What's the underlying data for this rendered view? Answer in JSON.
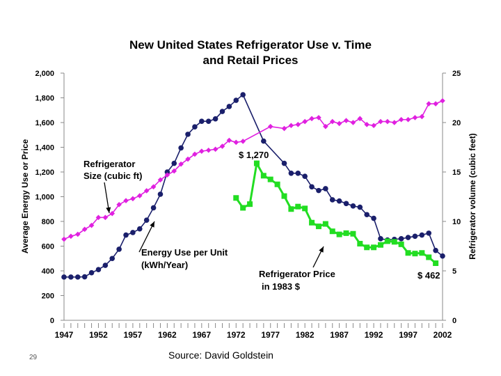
{
  "page": {
    "page_number": "29",
    "source": "Source: David Goldstein"
  },
  "chart_data": {
    "type": "line",
    "title": [
      "New United States Refrigerator Use v. Time",
      "and Retail Prices"
    ],
    "ylabel_left": "Average Energy Use or Price",
    "ylabel_right": "Refrigerator volume (cubic feet)",
    "ylim_left": [
      0,
      2000
    ],
    "ylim_right": [
      0,
      25
    ],
    "xlim": [
      1947,
      2002
    ],
    "left_ticks": [
      "0",
      "200",
      "400",
      "600",
      "800",
      "1,000",
      "1,200",
      "1,400",
      "1,600",
      "1,800",
      "2,000"
    ],
    "left_tick_values": [
      0,
      200,
      400,
      600,
      800,
      1000,
      1200,
      1400,
      1600,
      1800,
      2000
    ],
    "right_ticks": [
      "0",
      "5",
      "10",
      "15",
      "20",
      "25"
    ],
    "right_tick_values": [
      0,
      5,
      10,
      15,
      20,
      25
    ],
    "x_ticks": [
      "1947",
      "1952",
      "1957",
      "1962",
      "1967",
      "1972",
      "1977",
      "1982",
      "1987",
      "1992",
      "1997",
      "2002"
    ],
    "x_tick_values": [
      1947,
      1952,
      1957,
      1962,
      1967,
      1972,
      1977,
      1982,
      1987,
      1992,
      1997,
      2002
    ],
    "series": [
      {
        "name": "Energy Use per Unit (kWh/Year)",
        "color": "#1a1f6b",
        "marker": "circle",
        "axis": "left",
        "points": [
          [
            1947,
            350
          ],
          [
            1948,
            350
          ],
          [
            1949,
            350
          ],
          [
            1950,
            352
          ],
          [
            1951,
            385
          ],
          [
            1952,
            410
          ],
          [
            1953,
            445
          ],
          [
            1954,
            500
          ],
          [
            1955,
            575
          ],
          [
            1956,
            690
          ],
          [
            1957,
            710
          ],
          [
            1958,
            740
          ],
          [
            1959,
            810
          ],
          [
            1960,
            910
          ],
          [
            1961,
            1020
          ],
          [
            1962,
            1200
          ],
          [
            1963,
            1270
          ],
          [
            1964,
            1395
          ],
          [
            1965,
            1505
          ],
          [
            1966,
            1565
          ],
          [
            1967,
            1610
          ],
          [
            1968,
            1610
          ],
          [
            1969,
            1630
          ],
          [
            1970,
            1690
          ],
          [
            1971,
            1730
          ],
          [
            1972,
            1780
          ],
          [
            1973,
            1825
          ],
          [
            1976,
            1450
          ],
          [
            1979,
            1270
          ],
          [
            1980,
            1190
          ],
          [
            1981,
            1190
          ],
          [
            1982,
            1165
          ],
          [
            1983,
            1080
          ],
          [
            1984,
            1050
          ],
          [
            1985,
            1065
          ],
          [
            1986,
            975
          ],
          [
            1987,
            965
          ],
          [
            1988,
            945
          ],
          [
            1989,
            925
          ],
          [
            1990,
            915
          ],
          [
            1991,
            855
          ],
          [
            1992,
            825
          ],
          [
            1993,
            660
          ],
          [
            1994,
            650
          ],
          [
            1995,
            655
          ],
          [
            1996,
            660
          ],
          [
            1997,
            670
          ],
          [
            1998,
            680
          ],
          [
            1999,
            690
          ],
          [
            2000,
            705
          ],
          [
            2001,
            565
          ],
          [
            2002,
            520
          ]
        ]
      },
      {
        "name": "Refrigerator Size (cubic ft)",
        "color": "#e020e0",
        "marker": "diamond",
        "axis": "right",
        "points": [
          [
            1947,
            8.2
          ],
          [
            1948,
            8.5
          ],
          [
            1949,
            8.7
          ],
          [
            1950,
            9.2
          ],
          [
            1951,
            9.6
          ],
          [
            1952,
            10.4
          ],
          [
            1953,
            10.4
          ],
          [
            1954,
            10.8
          ],
          [
            1955,
            11.7
          ],
          [
            1956,
            12.1
          ],
          [
            1957,
            12.3
          ],
          [
            1958,
            12.6
          ],
          [
            1959,
            13.1
          ],
          [
            1960,
            13.5
          ],
          [
            1961,
            14.2
          ],
          [
            1962,
            14.7
          ],
          [
            1963,
            15.1
          ],
          [
            1964,
            15.8
          ],
          [
            1965,
            16.3
          ],
          [
            1966,
            16.8
          ],
          [
            1967,
            17.1
          ],
          [
            1968,
            17.2
          ],
          [
            1969,
            17.3
          ],
          [
            1970,
            17.6
          ],
          [
            1971,
            18.2
          ],
          [
            1972,
            18.0
          ],
          [
            1973,
            18.1
          ],
          [
            1977,
            19.6
          ],
          [
            1979,
            19.4
          ],
          [
            1980,
            19.7
          ],
          [
            1981,
            19.8
          ],
          [
            1982,
            20.1
          ],
          [
            1983,
            20.4
          ],
          [
            1984,
            20.5
          ],
          [
            1985,
            19.6
          ],
          [
            1986,
            20.1
          ],
          [
            1987,
            19.9
          ],
          [
            1988,
            20.2
          ],
          [
            1989,
            20.0
          ],
          [
            1990,
            20.4
          ],
          [
            1991,
            19.8
          ],
          [
            1992,
            19.7
          ],
          [
            1993,
            20.1
          ],
          [
            1994,
            20.1
          ],
          [
            1995,
            20.0
          ],
          [
            1996,
            20.3
          ],
          [
            1997,
            20.3
          ],
          [
            1998,
            20.5
          ],
          [
            1999,
            20.6
          ],
          [
            2000,
            21.9
          ],
          [
            2001,
            21.9
          ],
          [
            2002,
            22.2
          ]
        ]
      },
      {
        "name": "Refrigerator Price in 1983 $",
        "color": "#22dd22",
        "marker": "square",
        "axis": "left",
        "points": [
          [
            1972,
            990
          ],
          [
            1973,
            910
          ],
          [
            1974,
            940
          ],
          [
            1975,
            1270
          ],
          [
            1976,
            1170
          ],
          [
            1977,
            1140
          ],
          [
            1978,
            1100
          ],
          [
            1979,
            1005
          ],
          [
            1980,
            900
          ],
          [
            1981,
            920
          ],
          [
            1982,
            905
          ],
          [
            1983,
            790
          ],
          [
            1984,
            760
          ],
          [
            1985,
            780
          ],
          [
            1986,
            720
          ],
          [
            1987,
            695
          ],
          [
            1988,
            705
          ],
          [
            1989,
            700
          ],
          [
            1990,
            620
          ],
          [
            1991,
            590
          ],
          [
            1992,
            590
          ],
          [
            1993,
            610
          ],
          [
            1994,
            640
          ],
          [
            1995,
            635
          ],
          [
            1996,
            615
          ],
          [
            1997,
            545
          ],
          [
            1998,
            540
          ],
          [
            1999,
            545
          ],
          [
            2000,
            510
          ],
          [
            2001,
            462
          ]
        ]
      }
    ],
    "annotations": {
      "size_label": [
        "Refrigerator",
        "Size (cubic ft)"
      ],
      "energy_label": [
        "Energy Use per Unit",
        "(kWh/Year)"
      ],
      "price_label": [
        "Refrigerator Price",
        "in 1983 $"
      ],
      "price_max": "$ 1,270",
      "price_min": "$ 462"
    }
  }
}
